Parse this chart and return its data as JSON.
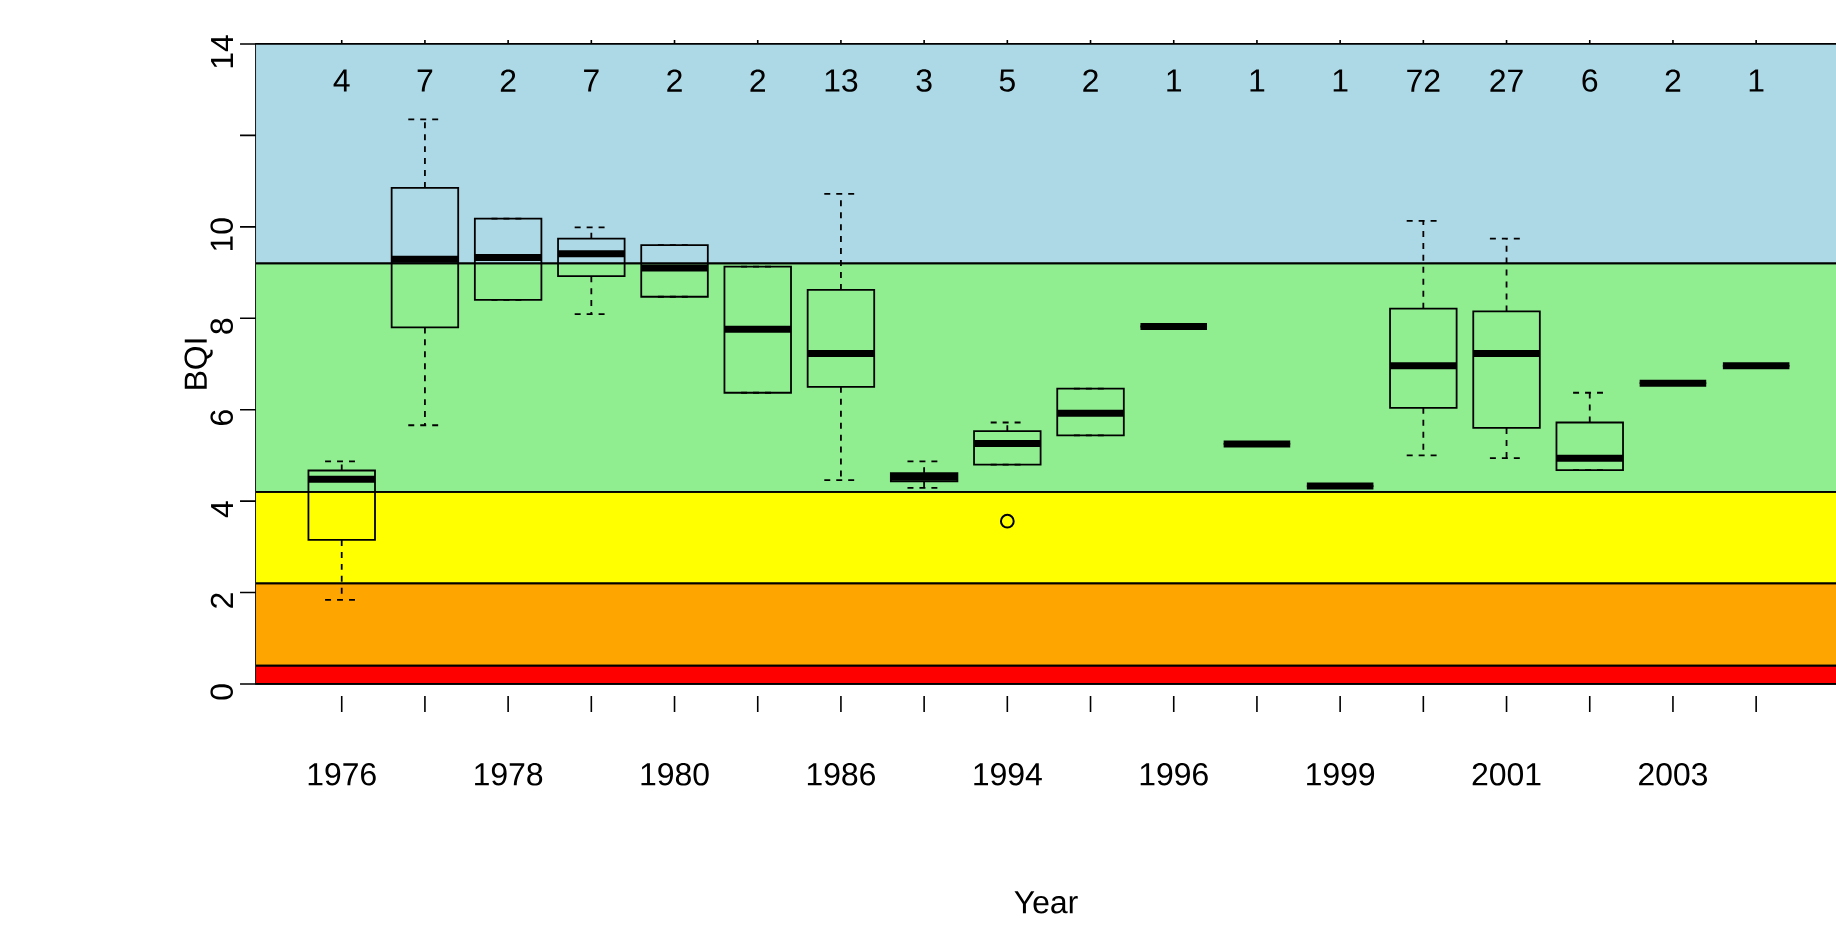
{
  "chart_data": {
    "type": "box",
    "xlabel": "Year",
    "ylabel": "BQI",
    "categories": [
      "1976",
      null,
      "1978",
      null,
      "1980",
      null,
      "1986",
      null,
      "1994",
      null,
      "1996",
      null,
      "1999",
      null,
      "2001",
      null,
      "2003",
      null
    ],
    "boxes": [
      {
        "low": 1.84,
        "q1": 3.15,
        "median": 4.48,
        "q3": 4.67,
        "high": 4.87
      },
      {
        "low": 5.66,
        "q1": 7.8,
        "median": 9.29,
        "q3": 10.85,
        "high": 12.35
      },
      {
        "low": 8.4,
        "q1": 8.4,
        "median": 9.33,
        "q3": 10.18,
        "high": 10.18
      },
      {
        "low": 8.09,
        "q1": 8.92,
        "median": 9.41,
        "q3": 9.74,
        "high": 9.99
      },
      {
        "low": 8.47,
        "q1": 8.47,
        "median": 9.1,
        "q3": 9.6,
        "high": 9.6
      },
      {
        "low": 6.37,
        "q1": 6.37,
        "median": 7.76,
        "q3": 9.13,
        "high": 9.13
      },
      {
        "low": 4.46,
        "q1": 6.5,
        "median": 7.23,
        "q3": 8.62,
        "high": 10.72
      },
      {
        "low": 4.29,
        "q1": 4.43,
        "median": 4.52,
        "q3": 4.61,
        "high": 4.87
      },
      {
        "low": 4.8,
        "q1": 4.8,
        "median": 5.26,
        "q3": 5.53,
        "high": 5.72,
        "outliers": [
          3.56
        ]
      },
      {
        "low": 5.44,
        "q1": 5.44,
        "median": 5.92,
        "q3": 6.46,
        "high": 6.46
      },
      {
        "low": 7.82,
        "q1": 7.82,
        "median": 7.82,
        "q3": 7.82,
        "high": 7.82
      },
      {
        "low": 5.25,
        "q1": 5.25,
        "median": 5.25,
        "q3": 5.25,
        "high": 5.25
      },
      {
        "low": 4.33,
        "q1": 4.33,
        "median": 4.33,
        "q3": 4.33,
        "high": 4.33
      },
      {
        "low": 5.0,
        "q1": 6.04,
        "median": 6.96,
        "q3": 8.21,
        "high": 10.13
      },
      {
        "low": 4.94,
        "q1": 5.6,
        "median": 7.23,
        "q3": 8.15,
        "high": 9.74
      },
      {
        "low": 4.68,
        "q1": 4.68,
        "median": 4.94,
        "q3": 5.72,
        "high": 6.37
      },
      {
        "low": 6.58,
        "q1": 6.58,
        "median": 6.58,
        "q3": 6.58,
        "high": 6.58
      },
      {
        "low": 6.96,
        "q1": 6.96,
        "median": 6.96,
        "q3": 6.96,
        "high": 6.96
      }
    ],
    "ylim": [
      0,
      14
    ],
    "yticks": [
      0,
      2,
      4,
      6,
      8,
      10,
      {
        "value": 12,
        "label": null
      },
      14
    ],
    "bands": [
      {
        "axis": "y",
        "from": 0,
        "to": 0.4,
        "color": "#ff0000"
      },
      {
        "axis": "y",
        "from": 0.4,
        "to": 2.2,
        "color": "#ffa500"
      },
      {
        "axis": "y",
        "from": 2.2,
        "to": 4.2,
        "color": "#ffff00"
      },
      {
        "axis": "y",
        "from": 4.2,
        "to": 9.2,
        "color": "#90ee90"
      },
      {
        "axis": "y",
        "from": 9.2,
        "to": 14,
        "color": "#add8e6"
      }
    ],
    "annotations": [
      "4",
      "7",
      "2",
      "7",
      "2",
      "2",
      "13",
      "3",
      "5",
      "2",
      "1",
      "1",
      "1",
      "72",
      "27",
      "6",
      "2",
      "1"
    ]
  }
}
